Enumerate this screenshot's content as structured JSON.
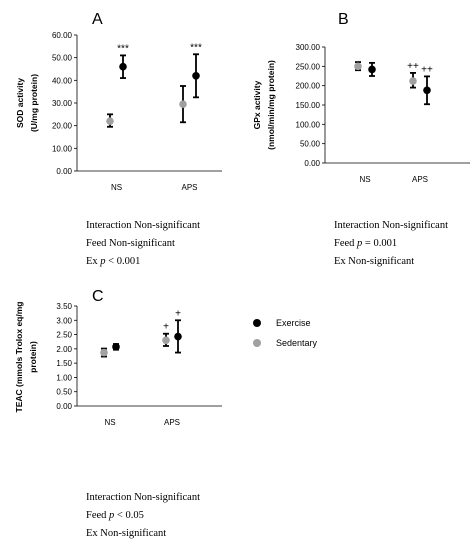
{
  "legend": [
    {
      "name": "Exercise",
      "color": "#000000"
    },
    {
      "name": "Sedentary",
      "color": "#a0a0a0"
    }
  ],
  "chart_data": [
    {
      "panel": "A",
      "type": "scatter",
      "ylabel": [
        "SOD activity",
        "(U/mg protein)"
      ],
      "ylim": [
        0,
        60
      ],
      "yticks": [
        "0.00",
        "10.00",
        "20.00",
        "30.00",
        "40.00",
        "50.00",
        "60.00"
      ],
      "categories": [
        "NS",
        "APS"
      ],
      "series": [
        {
          "color": "#a0a0a0",
          "values": [
            22,
            29.5
          ],
          "err_low": [
            19.5,
            21.5
          ],
          "err_high": [
            25,
            37.5
          ]
        },
        {
          "color": "#000000",
          "values": [
            46,
            42
          ],
          "err_low": [
            41,
            32.5
          ],
          "err_high": [
            51,
            51.5
          ],
          "annotation": [
            "***",
            "***"
          ]
        }
      ],
      "stats": [
        "Interaction Non-significant",
        "Feed Non-significant",
        "Ex p < 0.001"
      ]
    },
    {
      "panel": "B",
      "type": "scatter",
      "ylabel": [
        "GPx activity",
        "(nmol/min/mg protein)"
      ],
      "ylim": [
        0,
        300
      ],
      "yticks": [
        "0.00",
        "50.00",
        "100.00",
        "150.00",
        "200.00",
        "250.00",
        "300.00"
      ],
      "categories": [
        "NS",
        "APS"
      ],
      "series": [
        {
          "color": "#a0a0a0",
          "values": [
            250,
            212
          ],
          "err_low": [
            240,
            195
          ],
          "err_high": [
            261,
            233
          ],
          "annotation": [
            "",
            "++"
          ]
        },
        {
          "color": "#000000",
          "values": [
            242,
            188
          ],
          "err_low": [
            225,
            152
          ],
          "err_high": [
            259,
            224
          ],
          "annotation": [
            "",
            "++"
          ]
        }
      ],
      "stats": [
        "Interaction Non-significant",
        "Feed p = 0.001",
        "Ex Non-significant"
      ]
    },
    {
      "panel": "C",
      "type": "scatter",
      "ylabel": [
        "TEAC (mmols Trolox eq/mg",
        "protein)"
      ],
      "ylim": [
        0,
        3.5
      ],
      "yticks": [
        "0.00",
        "0.50",
        "1.00",
        "1.50",
        "2.00",
        "2.50",
        "3.00",
        "3.50"
      ],
      "categories": [
        "NS",
        "APS"
      ],
      "series": [
        {
          "color": "#a0a0a0",
          "values": [
            1.87,
            2.3
          ],
          "err_low": [
            1.73,
            2.1
          ],
          "err_high": [
            2.01,
            2.53
          ],
          "annotation": [
            "",
            "+"
          ]
        },
        {
          "color": "#000000",
          "values": [
            2.07,
            2.43
          ],
          "err_low": [
            1.97,
            1.87
          ],
          "err_high": [
            2.17,
            3.0
          ],
          "annotation": [
            "",
            "+"
          ]
        }
      ],
      "stats": [
        "Interaction Non-significant",
        "Feed p < 0.05",
        "Ex Non-significant"
      ]
    }
  ]
}
